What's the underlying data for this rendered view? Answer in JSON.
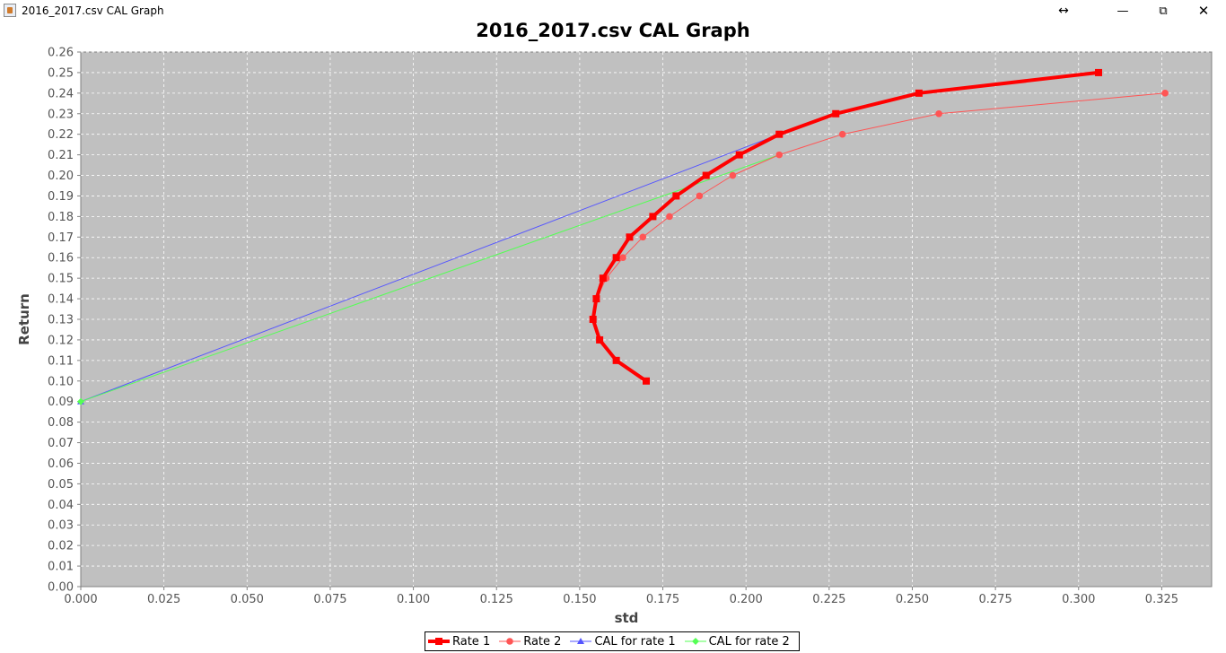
{
  "window": {
    "title": "2016_2017.csv CAL Graph",
    "controls": {
      "resize": "↔",
      "minimize": "—",
      "maximize": "⧉",
      "close": "✕"
    }
  },
  "chart_data": {
    "type": "line",
    "title": "2016_2017.csv CAL Graph",
    "xlabel": "std",
    "ylabel": "Return",
    "xlim": [
      0,
      0.34
    ],
    "ylim": [
      0,
      0.26
    ],
    "x_ticks": [
      "0.000",
      "0.025",
      "0.050",
      "0.075",
      "0.100",
      "0.125",
      "0.150",
      "0.175",
      "0.200",
      "0.225",
      "0.250",
      "0.275",
      "0.300",
      "0.325"
    ],
    "y_ticks": [
      "0.00",
      "0.01",
      "0.02",
      "0.03",
      "0.04",
      "0.05",
      "0.06",
      "0.07",
      "0.08",
      "0.09",
      "0.10",
      "0.11",
      "0.12",
      "0.13",
      "0.14",
      "0.15",
      "0.16",
      "0.17",
      "0.18",
      "0.19",
      "0.20",
      "0.21",
      "0.22",
      "0.23",
      "0.24",
      "0.25",
      "0.26"
    ],
    "grid": true,
    "legend_position": "bottom",
    "background": "#c0c0c0",
    "series": [
      {
        "name": "Rate 1",
        "color": "#ff0000",
        "marker": "square",
        "width": 4,
        "points": [
          [
            0.17,
            0.1
          ],
          [
            0.161,
            0.11
          ],
          [
            0.156,
            0.12
          ],
          [
            0.154,
            0.13
          ],
          [
            0.155,
            0.14
          ],
          [
            0.157,
            0.15
          ],
          [
            0.161,
            0.16
          ],
          [
            0.165,
            0.17
          ],
          [
            0.172,
            0.18
          ],
          [
            0.179,
            0.19
          ],
          [
            0.188,
            0.2
          ],
          [
            0.198,
            0.21
          ],
          [
            0.21,
            0.22
          ],
          [
            0.227,
            0.23
          ],
          [
            0.252,
            0.24
          ],
          [
            0.306,
            0.25
          ]
        ]
      },
      {
        "name": "Rate 2",
        "color": "#ff5555",
        "marker": "circle",
        "width": 1,
        "points": [
          [
            0.155,
            0.14
          ],
          [
            0.158,
            0.15
          ],
          [
            0.163,
            0.16
          ],
          [
            0.169,
            0.17
          ],
          [
            0.177,
            0.18
          ],
          [
            0.186,
            0.19
          ],
          [
            0.196,
            0.2
          ],
          [
            0.21,
            0.21
          ],
          [
            0.229,
            0.22
          ],
          [
            0.258,
            0.23
          ],
          [
            0.326,
            0.24
          ]
        ]
      },
      {
        "name": "CAL for rate 1",
        "color": "#5555ff",
        "marker": "triangle",
        "width": 1,
        "points": [
          [
            0.0,
            0.09
          ],
          [
            0.21,
            0.22
          ]
        ]
      },
      {
        "name": "CAL for rate 2",
        "color": "#55ff55",
        "marker": "diamond",
        "width": 1,
        "points": [
          [
            0.0,
            0.09
          ],
          [
            0.21,
            0.21
          ]
        ]
      }
    ]
  }
}
